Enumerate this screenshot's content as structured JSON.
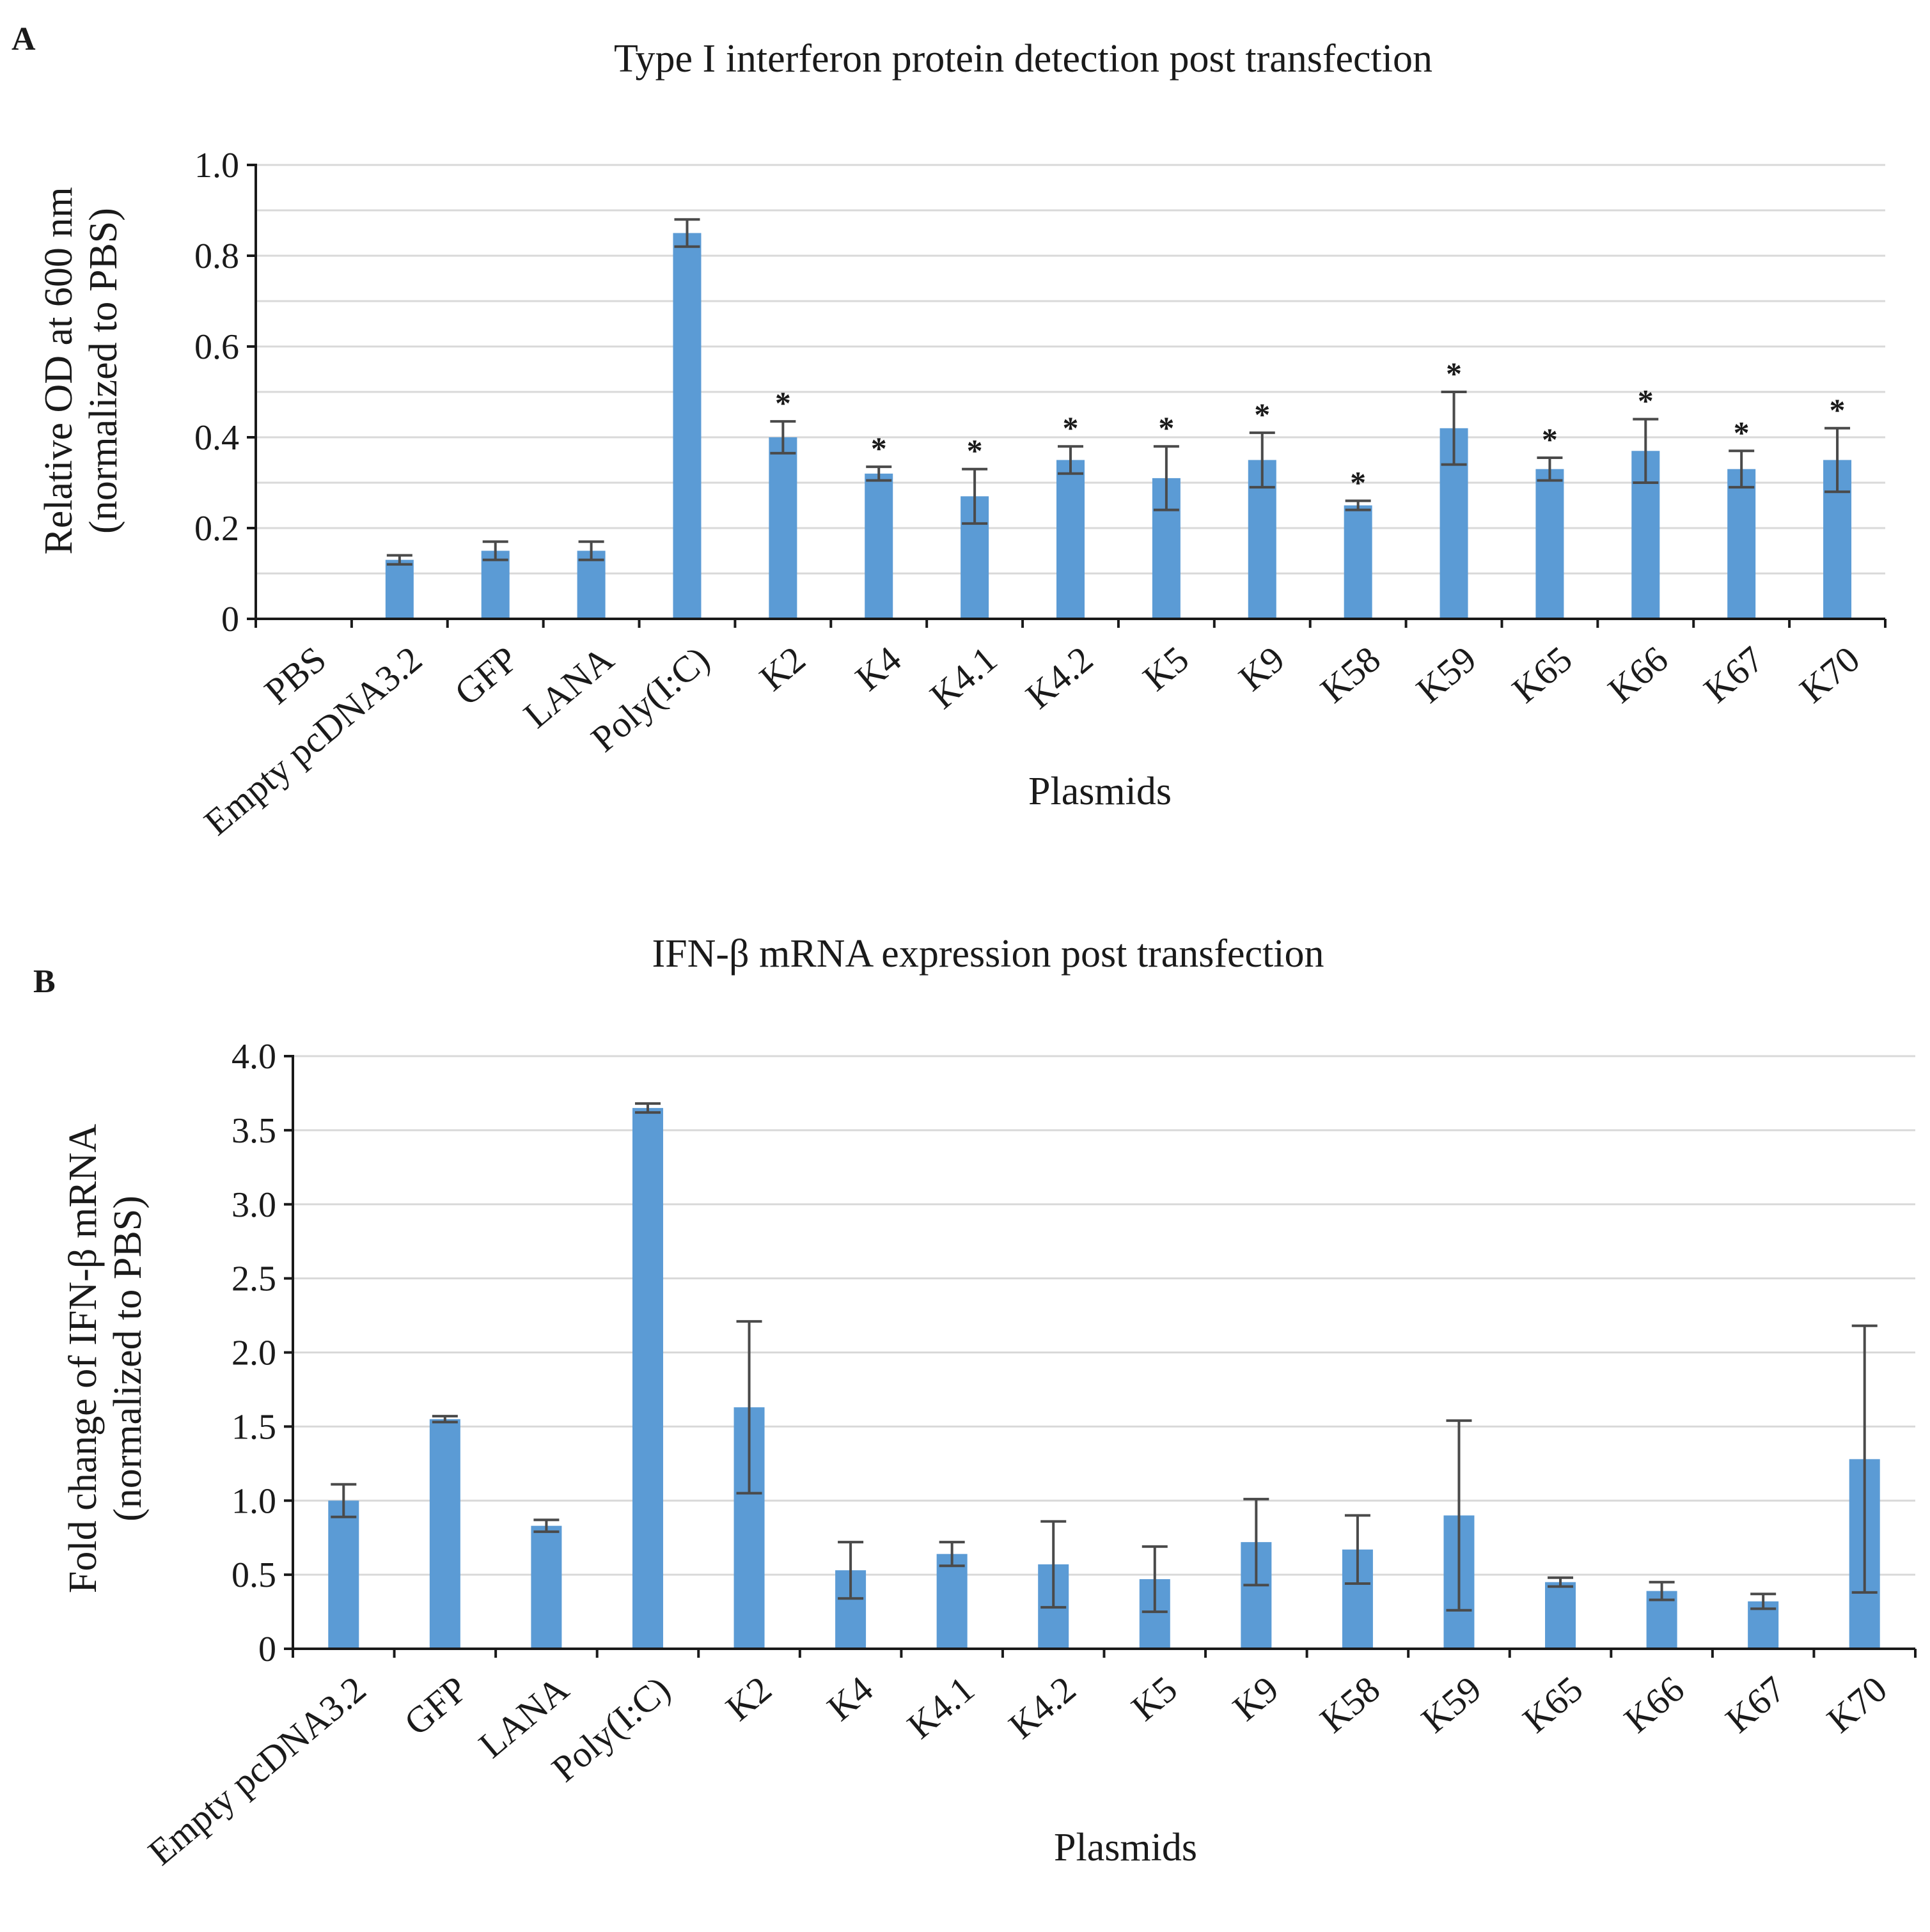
{
  "chart_data": [
    {
      "panel": "A",
      "type": "bar",
      "title": "Type I interferon protein detection post transfection",
      "xlabel": "Plasmids",
      "ylabel": [
        "Relative OD at 600 nm",
        "(normalized to PBS)"
      ],
      "ylim": [
        0,
        1.0
      ],
      "yticks": [
        0,
        0.2,
        0.4,
        0.6,
        0.8,
        1.0
      ],
      "ytick_labels": [
        "0",
        "0.2",
        "0.4",
        "0.6",
        "0.8",
        "1.0"
      ],
      "grid_step": 0.1,
      "grid": true,
      "bar_color": "#5b9bd5",
      "significance_marker": "*",
      "categories": [
        "PBS",
        "Empty pcDNA3.2",
        "GFP",
        "LANA",
        "Poly(I:C)",
        "K2",
        "K4",
        "K4.1",
        "K4.2",
        "K5",
        "K9",
        "K58",
        "K59",
        "K65",
        "K66",
        "K67",
        "K70"
      ],
      "values": [
        0,
        0.13,
        0.15,
        0.15,
        0.85,
        0.4,
        0.32,
        0.27,
        0.35,
        0.31,
        0.35,
        0.25,
        0.42,
        0.33,
        0.37,
        0.33,
        0.35
      ],
      "errors": [
        0,
        0.01,
        0.02,
        0.02,
        0.03,
        0.035,
        0.015,
        0.06,
        0.03,
        0.07,
        0.06,
        0.01,
        0.08,
        0.025,
        0.07,
        0.04,
        0.07
      ],
      "significant": [
        false,
        false,
        false,
        false,
        false,
        true,
        true,
        true,
        true,
        true,
        true,
        true,
        true,
        true,
        true,
        true,
        true
      ]
    },
    {
      "panel": "B",
      "type": "bar",
      "title": "IFN-β mRNA expression post transfection",
      "xlabel": "Plasmids",
      "ylabel": [
        "Fold change of IFN-β mRNA",
        "(normalized to PBS)"
      ],
      "ylim": [
        0,
        4.0
      ],
      "yticks": [
        0,
        0.5,
        1.0,
        1.5,
        2.0,
        2.5,
        3.0,
        3.5,
        4.0
      ],
      "ytick_labels": [
        "0",
        "0.5",
        "1.0",
        "1.5",
        "2.0",
        "2.5",
        "3.0",
        "3.5",
        "4.0"
      ],
      "grid_step": 0.5,
      "grid": true,
      "bar_color": "#5b9bd5",
      "categories": [
        "Empty pcDNA3.2",
        "GFP",
        "LANA",
        "Poly(I:C)",
        "K2",
        "K4",
        "K4.1",
        "K4.2",
        "K5",
        "K9",
        "K58",
        "K59",
        "K65",
        "K66",
        "K67",
        "K70"
      ],
      "values": [
        1.0,
        1.55,
        0.83,
        3.65,
        1.63,
        0.53,
        0.64,
        0.57,
        0.47,
        0.72,
        0.67,
        0.9,
        0.45,
        0.39,
        0.32,
        1.28
      ],
      "errors": [
        0.11,
        0.02,
        0.04,
        0.03,
        0.58,
        0.19,
        0.08,
        0.29,
        0.22,
        0.29,
        0.23,
        0.64,
        0.03,
        0.06,
        0.05,
        0.9
      ],
      "significant": [
        false,
        false,
        false,
        false,
        false,
        false,
        false,
        false,
        false,
        false,
        false,
        false,
        false,
        false,
        false,
        false
      ]
    }
  ]
}
